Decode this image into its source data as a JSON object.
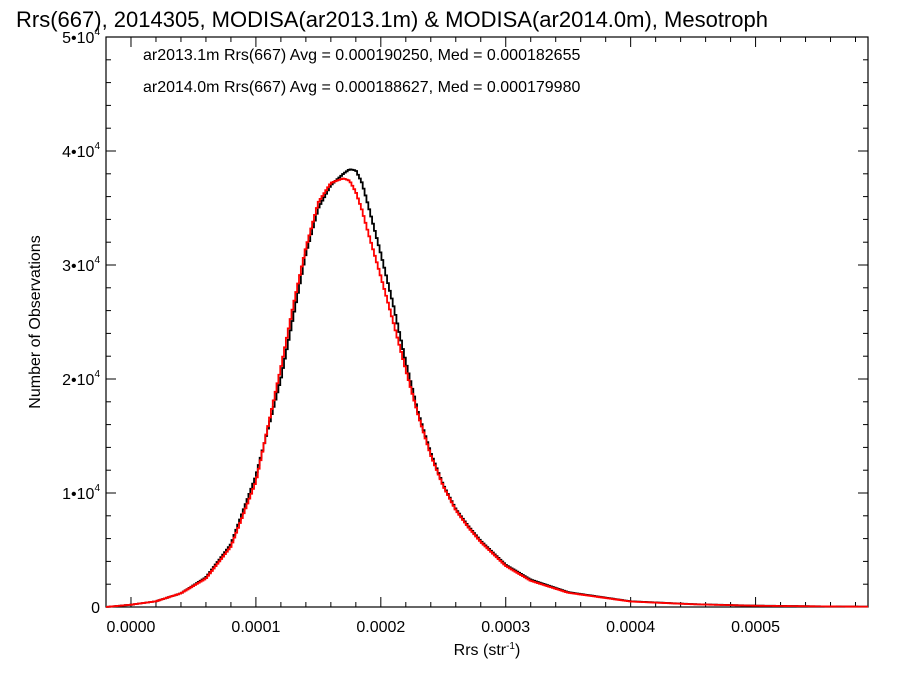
{
  "chart_data": {
    "type": "line",
    "title": "Rrs(667), 2014305, MODISA(ar2013.1m) & MODISA(ar2014.0m), Mesotroph",
    "xlabel": "Rrs (str",
    "xlabel_sup": "-1",
    "xlabel_close": ")",
    "ylabel": "Number of Observations",
    "xlim": [
      -2e-05,
      0.00059
    ],
    "ylim": [
      0,
      50000
    ],
    "x_ticks": [
      {
        "value": 0.0,
        "label": "0.0000"
      },
      {
        "value": 0.0001,
        "label": "0.0001"
      },
      {
        "value": 0.0002,
        "label": "0.0002"
      },
      {
        "value": 0.0003,
        "label": "0.0003"
      },
      {
        "value": 0.0004,
        "label": "0.0004"
      },
      {
        "value": 0.0005,
        "label": "0.0005"
      }
    ],
    "y_ticks": [
      {
        "value": 0,
        "mant": "0",
        "exp": ""
      },
      {
        "value": 10000,
        "mant": "1•10",
        "exp": "4"
      },
      {
        "value": 20000,
        "mant": "2•10",
        "exp": "4"
      },
      {
        "value": 30000,
        "mant": "3•10",
        "exp": "4"
      },
      {
        "value": 40000,
        "mant": "4•10",
        "exp": "4"
      },
      {
        "value": 50000,
        "mant": "5•10",
        "exp": "4"
      }
    ],
    "grid": false,
    "annotations": [
      {
        "text": "ar2013.1m Rrs(667) Avg = 0.000190250, Med = 0.000182655",
        "color": "#000000"
      },
      {
        "text": "ar2014.0m Rrs(667) Avg = 0.000188627, Med = 0.000179980",
        "color": "#ff0000"
      }
    ],
    "series": [
      {
        "color": "#000000",
        "x": [
          -2e-05,
          0.0,
          2e-05,
          4e-05,
          6e-05,
          8e-05,
          0.0001,
          0.00012,
          0.00013,
          0.00014,
          0.00015,
          0.00016,
          0.00017,
          0.000175,
          0.00018,
          0.000185,
          0.00019,
          0.0002,
          0.00021,
          0.00022,
          0.00023,
          0.00024,
          0.00025,
          0.00026,
          0.00027,
          0.00028,
          0.0003,
          0.00032,
          0.00035,
          0.0004,
          0.00045,
          0.0005,
          0.00055,
          0.00059
        ],
        "y": [
          0,
          200,
          500,
          1200,
          2600,
          5500,
          11500,
          20000,
          25500,
          31000,
          35000,
          37000,
          38000,
          38400,
          38300,
          37200,
          35200,
          31000,
          26500,
          21500,
          17000,
          13500,
          10700,
          8600,
          7100,
          5800,
          3700,
          2400,
          1300,
          500,
          250,
          120,
          60,
          30
        ]
      },
      {
        "color": "#ff0000",
        "x": [
          -2e-05,
          0.0,
          2e-05,
          4e-05,
          6e-05,
          8e-05,
          0.0001,
          0.00012,
          0.00013,
          0.00014,
          0.00015,
          0.00016,
          0.00017,
          0.000175,
          0.00018,
          0.000185,
          0.00019,
          0.0002,
          0.00021,
          0.00022,
          0.00023,
          0.00024,
          0.00025,
          0.00026,
          0.00027,
          0.00028,
          0.0003,
          0.00032,
          0.00035,
          0.0004,
          0.00045,
          0.0005,
          0.00055,
          0.00059
        ],
        "y": [
          0,
          200,
          500,
          1200,
          2500,
          5300,
          11000,
          21000,
          26500,
          31500,
          35500,
          37200,
          37600,
          37400,
          36400,
          34800,
          32800,
          29000,
          25000,
          20800,
          16800,
          13300,
          10600,
          8500,
          7000,
          5700,
          3600,
          2300,
          1250,
          480,
          240,
          110,
          55,
          30
        ]
      }
    ]
  }
}
